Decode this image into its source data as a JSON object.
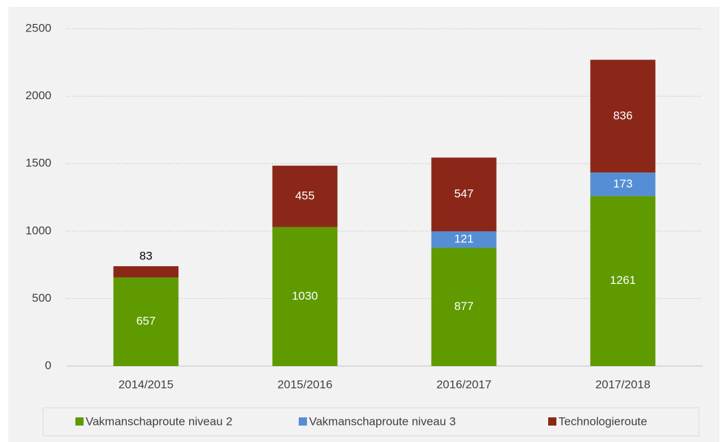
{
  "chart_data": {
    "type": "stacked_bar",
    "categories": [
      "2014/2015",
      "2015/2016",
      "2016/2017",
      "2017/2018"
    ],
    "series": [
      {
        "name": "Vakmanschaproute niveau 2",
        "color": "#5f9a00",
        "values": [
          657,
          1030,
          877,
          1261
        ]
      },
      {
        "name": "Vakmanschaproute niveau 3",
        "color": "#558ed5",
        "values": [
          null,
          null,
          121,
          173
        ]
      },
      {
        "name": "Technologieroute",
        "color": "#8b2719",
        "values": [
          83,
          455,
          547,
          836
        ]
      }
    ],
    "ylim": [
      0,
      2500
    ],
    "yticks": [
      0,
      500,
      1000,
      1500,
      2000,
      2500
    ],
    "grid": true,
    "legend": "bottom"
  }
}
